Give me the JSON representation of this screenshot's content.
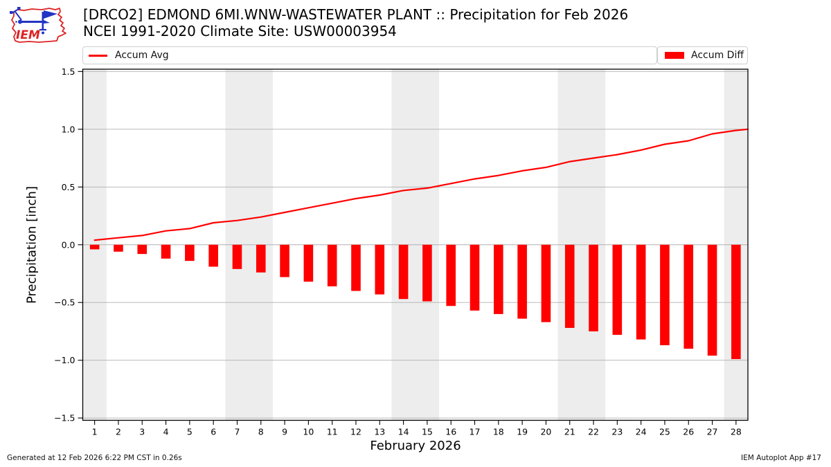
{
  "header": {
    "title_line1": "[DRCO2] EDMOND 6MI.WNW-WASTEWATER PLANT :: Precipitation for Feb 2026",
    "title_line2": "NCEI 1991-2020 Climate Site: USW00003954",
    "logo_text": "IEM"
  },
  "legend": {
    "avg_label": "Accum Avg",
    "diff_label": "Accum Diff"
  },
  "footer": {
    "generated": "Generated at 12 Feb 2026 6:22 PM CST in 0.26s",
    "app": "IEM Autoplot App #17"
  },
  "chart_data": {
    "type": "bar",
    "title": "[DRCO2] EDMOND 6MI.WNW-WASTEWATER PLANT :: Precipitation for Feb 2026",
    "subtitle": "NCEI 1991-2020 Climate Site: USW00003954",
    "xlabel": "February 2026",
    "ylabel": "Precipitation [inch]",
    "x": [
      1,
      2,
      3,
      4,
      5,
      6,
      7,
      8,
      9,
      10,
      11,
      12,
      13,
      14,
      15,
      16,
      17,
      18,
      19,
      20,
      21,
      22,
      23,
      24,
      25,
      26,
      27,
      28
    ],
    "series": [
      {
        "name": "Accum Avg",
        "type": "line",
        "color": "#ff0000",
        "values": [
          0.04,
          0.06,
          0.08,
          0.12,
          0.14,
          0.19,
          0.21,
          0.24,
          0.28,
          0.32,
          0.36,
          0.4,
          0.43,
          0.47,
          0.49,
          0.53,
          0.57,
          0.6,
          0.64,
          0.67,
          0.72,
          0.75,
          0.78,
          0.82,
          0.87,
          0.9,
          0.96,
          0.99
        ]
      },
      {
        "name": "Accum Diff",
        "type": "bar",
        "color": "#ff0000",
        "values": [
          -0.04,
          -0.06,
          -0.08,
          -0.12,
          -0.14,
          -0.19,
          -0.21,
          -0.24,
          -0.28,
          -0.32,
          -0.36,
          -0.4,
          -0.43,
          -0.47,
          -0.49,
          -0.53,
          -0.57,
          -0.6,
          -0.64,
          -0.67,
          -0.72,
          -0.75,
          -0.78,
          -0.82,
          -0.87,
          -0.9,
          -0.96,
          -0.99
        ]
      }
    ],
    "line_extension": {
      "x": 28.5,
      "value": 1.0
    },
    "ylim": [
      -1.52,
      1.52
    ],
    "xlim": [
      0.5,
      28.5
    ],
    "y_ticks": [
      1.5,
      1.0,
      0.5,
      0.0,
      -0.5,
      -1.0,
      -1.5
    ],
    "y_tick_labels": [
      "1.5",
      "1.0",
      "0.5",
      "0.0",
      "−0.5",
      "−1.0",
      "−1.5"
    ],
    "weekend_bands": [
      [
        0.5,
        1.5
      ],
      [
        6.5,
        8.5
      ],
      [
        13.5,
        15.5
      ],
      [
        20.5,
        22.5
      ],
      [
        27.5,
        28.5
      ]
    ],
    "grid_on": true,
    "legend_position": "top",
    "colors": {
      "accent_red": "#ff0000",
      "weekend_band": "#ededed",
      "gridline": "#b0b0b0",
      "spine": "#000000",
      "logo_red": "#dd2222",
      "logo_blue": "#2334c4"
    }
  }
}
